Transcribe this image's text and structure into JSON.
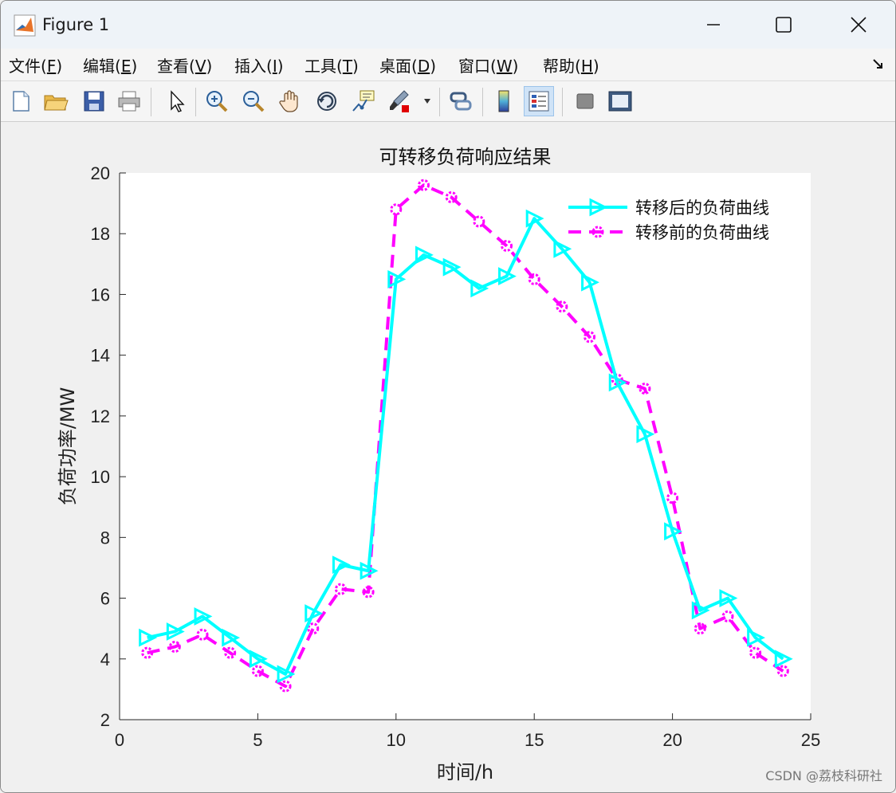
{
  "window": {
    "title": "Figure 1",
    "controls": {
      "minimize": "minimize",
      "maximize": "maximize",
      "close": "close"
    }
  },
  "menu": [
    {
      "label": "文件(",
      "key": "F",
      "tail": ")"
    },
    {
      "label": "编辑(",
      "key": "E",
      "tail": ")"
    },
    {
      "label": "查看(",
      "key": "V",
      "tail": ")"
    },
    {
      "label": "插入(",
      "key": "I",
      "tail": ")"
    },
    {
      "label": "工具(",
      "key": "T",
      "tail": ")"
    },
    {
      "label": "桌面(",
      "key": "D",
      "tail": ")"
    },
    {
      "label": "窗口(",
      "key": "W",
      "tail": ")"
    },
    {
      "label": "帮助(",
      "key": "H",
      "tail": ")"
    }
  ],
  "toolbar": [
    "new-figure-icon",
    "open-icon",
    "save-icon",
    "print-icon",
    "pointer-icon",
    "zoom-in-icon",
    "zoom-out-icon",
    "pan-icon",
    "rotate-icon",
    "data-cursor-icon",
    "brush-icon",
    "link-icon",
    "colorbar-icon",
    "legend-icon",
    "hide-plot-tools-icon",
    "show-plot-tools-icon"
  ],
  "watermark": "CSDN @荔枝科研社",
  "chart_data": {
    "type": "line",
    "title": "可转移负荷响应结果",
    "xlabel": "时间/h",
    "ylabel": "负荷功率/MW",
    "xlim": [
      0,
      25
    ],
    "ylim": [
      2,
      20
    ],
    "xticks": [
      0,
      5,
      10,
      15,
      20,
      25
    ],
    "yticks": [
      2,
      4,
      6,
      8,
      10,
      12,
      14,
      16,
      18,
      20
    ],
    "grid": false,
    "legend_position": "top-right",
    "x": [
      1,
      2,
      3,
      4,
      5,
      6,
      7,
      8,
      9,
      10,
      11,
      12,
      13,
      14,
      15,
      16,
      17,
      18,
      19,
      20,
      21,
      22,
      23,
      24
    ],
    "series": [
      {
        "name": "转移后的负荷曲线",
        "color": "#00ffff",
        "style": "solid",
        "marker": "triangle-right",
        "values": [
          4.7,
          4.9,
          5.4,
          4.7,
          4.0,
          3.5,
          5.5,
          7.1,
          6.9,
          16.5,
          17.3,
          16.9,
          16.2,
          16.6,
          18.5,
          17.5,
          16.4,
          13.1,
          11.4,
          8.2,
          5.6,
          6.0,
          4.7,
          4.0
        ]
      },
      {
        "name": "转移前的负荷曲线",
        "color": "#ff00ff",
        "style": "dashed",
        "marker": "circle",
        "values": [
          4.2,
          4.4,
          4.8,
          4.2,
          3.6,
          3.1,
          5.0,
          6.3,
          6.2,
          18.8,
          19.6,
          19.2,
          18.4,
          17.6,
          16.5,
          15.6,
          14.6,
          13.2,
          12.9,
          9.3,
          5.0,
          5.4,
          4.2,
          3.6
        ]
      }
    ]
  }
}
